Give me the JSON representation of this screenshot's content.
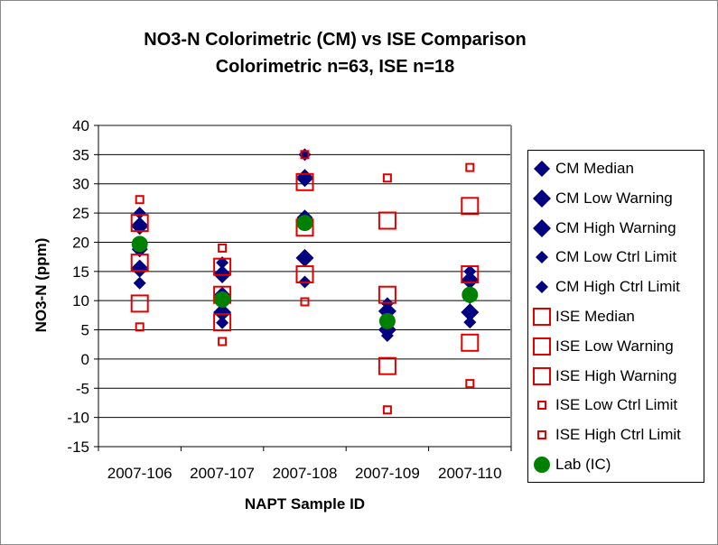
{
  "chart_data": {
    "type": "scatter",
    "title": "NO3-N Colorimetric (CM) vs ISE Comparison",
    "subtitle": "Colorimetric n=63, ISE n=18",
    "xlabel": "NAPT Sample ID",
    "ylabel": "NO3-N (ppm)",
    "ylim": [
      -15,
      40
    ],
    "yticks": [
      40,
      35,
      30,
      25,
      20,
      15,
      10,
      5,
      0,
      -5,
      -10,
      -15
    ],
    "grid": true,
    "legend_position": "right",
    "categories": [
      "2007-106",
      "2007-107",
      "2007-108",
      "2007-109",
      "2007-110"
    ],
    "series": [
      {
        "name": "CM  Median",
        "marker": "diamond",
        "color": "#000080",
        "values": [
          18.8,
          11,
          24.2,
          6.5,
          10.8
        ]
      },
      {
        "name": "CM  Low Warning",
        "marker": "diamond",
        "color": "#000080",
        "values": [
          15.5,
          8,
          17.3,
          5,
          8
        ]
      },
      {
        "name": "CM  High Warning",
        "marker": "diamond",
        "color": "#000080",
        "values": [
          22.8,
          14.5,
          31,
          8.2,
          13.5
        ]
      },
      {
        "name": "CM  Low Ctrl Limit",
        "marker": "diamond",
        "color": "#000080",
        "values": [
          13,
          6.2,
          13.2,
          4,
          6.3
        ]
      },
      {
        "name": "CM  High Ctrl Limit",
        "marker": "diamond",
        "color": "#000080",
        "values": [
          25,
          16.5,
          35,
          9.5,
          15
        ]
      },
      {
        "name": "ISE  Median",
        "marker": "square",
        "color": "#e00000",
        "values": [
          16.5,
          11,
          22.5,
          11,
          14.5
        ]
      },
      {
        "name": "ISE  Low Warning",
        "marker": "square",
        "color": "#e00000",
        "values": [
          9.5,
          6.3,
          14.5,
          -1.2,
          2.8
        ]
      },
      {
        "name": "ISE  High Warning",
        "marker": "square",
        "color": "#e00000",
        "values": [
          23.3,
          15.8,
          30.3,
          23.7,
          26.2
        ]
      },
      {
        "name": "ISE  Low Ctrl Limit",
        "marker": "square",
        "color": "#e00000",
        "values": [
          5.5,
          3,
          9.8,
          -8.7,
          -4.2
        ]
      },
      {
        "name": "ISE  High Ctrl Limit",
        "marker": "square",
        "color": "#e00000",
        "values": [
          27.3,
          19,
          35,
          31,
          32.8
        ]
      },
      {
        "name": "Lab (IC)",
        "marker": "circle",
        "color": "#008000",
        "values": [
          19.7,
          10.2,
          23.3,
          6.5,
          11
        ]
      }
    ]
  }
}
